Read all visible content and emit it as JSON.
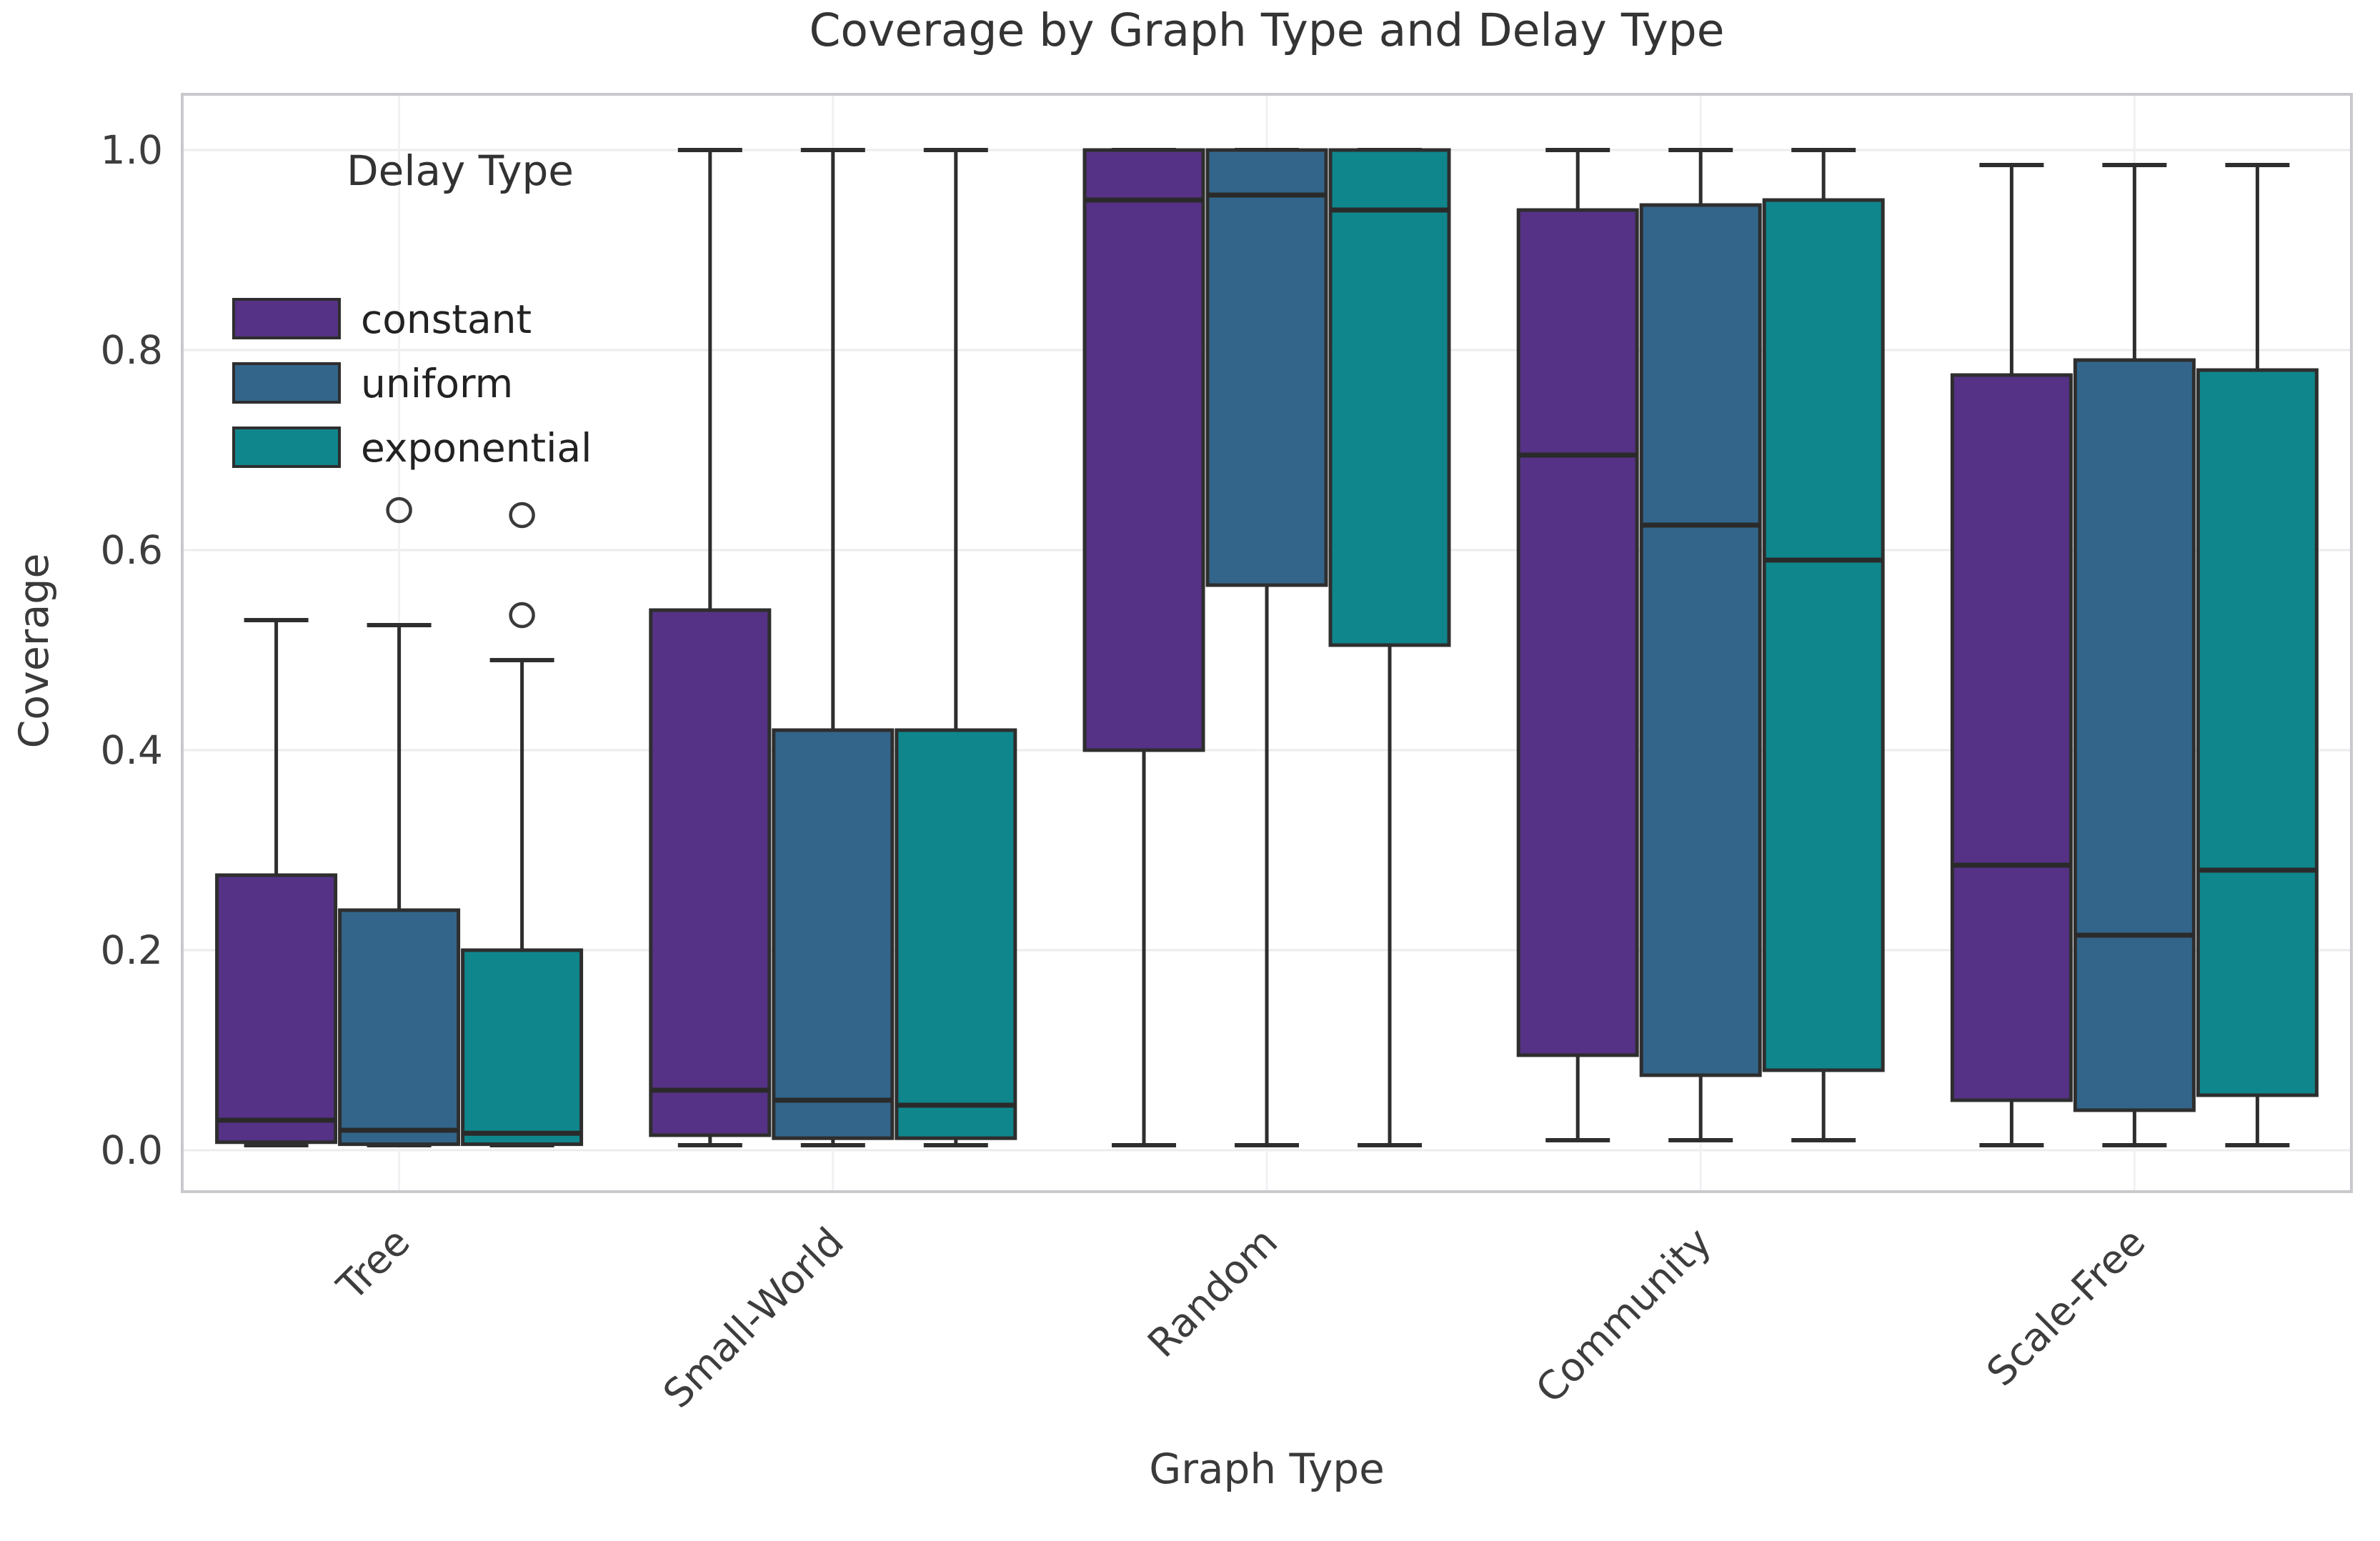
{
  "title": "Coverage by Graph Type and Delay Type",
  "x_axis": {
    "label": "Graph Type",
    "tick_labels": [
      "Tree",
      "Small-World",
      "Random",
      "Community",
      "Scale-Free"
    ],
    "tick_rotation_deg": -45
  },
  "y_axis": {
    "label": "Coverage",
    "tick_labels": [
      "0.0",
      "0.2",
      "0.4",
      "0.6",
      "0.8",
      "1.0"
    ],
    "tick_values": [
      0.0,
      0.2,
      0.4,
      0.6,
      0.8,
      1.0
    ]
  },
  "legend": {
    "title": "Delay Type",
    "items": [
      {
        "label": "constant",
        "color": "#553285"
      },
      {
        "label": "uniform",
        "color": "#33658a"
      },
      {
        "label": "exponential",
        "color": "#0f868c"
      }
    ]
  },
  "colors": {
    "box_edge": "#2e2e2e",
    "median_line": "#2a2a2a",
    "whisker": "#2e2e2e",
    "outlier_stroke": "#3a3a3a",
    "gridline_h": "#ececec",
    "gridline_v": "#f1f1f3",
    "spine": "#c9c9cd",
    "tick_text": "#3d3d3d",
    "background": "#ffffff"
  },
  "chart_data": {
    "type": "boxplot",
    "title": "Coverage by Graph Type and Delay Type",
    "xlabel": "Graph Type",
    "ylabel": "Coverage",
    "ylim": [
      -0.05,
      1.06
    ],
    "grid": true,
    "legend_position": "upper left",
    "categories": [
      "Tree",
      "Small-World",
      "Random",
      "Community",
      "Scale-Free"
    ],
    "series": [
      {
        "name": "constant",
        "color": "#553285",
        "boxes": [
          {
            "whislo": 0.005,
            "q1": 0.008,
            "med": 0.03,
            "q3": 0.275,
            "whishi": 0.53,
            "fliers": []
          },
          {
            "whislo": 0.005,
            "q1": 0.015,
            "med": 0.06,
            "q3": 0.54,
            "whishi": 1.0,
            "fliers": []
          },
          {
            "whislo": 0.005,
            "q1": 0.4,
            "med": 0.95,
            "q3": 1.0,
            "whishi": 1.0,
            "fliers": []
          },
          {
            "whislo": 0.01,
            "q1": 0.095,
            "med": 0.695,
            "q3": 0.94,
            "whishi": 1.0,
            "fliers": []
          },
          {
            "whislo": 0.005,
            "q1": 0.05,
            "med": 0.285,
            "q3": 0.775,
            "whishi": 0.985,
            "fliers": []
          }
        ]
      },
      {
        "name": "uniform",
        "color": "#33658a",
        "boxes": [
          {
            "whislo": 0.005,
            "q1": 0.006,
            "med": 0.02,
            "q3": 0.24,
            "whishi": 0.525,
            "fliers": [
              0.64
            ]
          },
          {
            "whislo": 0.005,
            "q1": 0.012,
            "med": 0.05,
            "q3": 0.42,
            "whishi": 1.0,
            "fliers": []
          },
          {
            "whislo": 0.005,
            "q1": 0.565,
            "med": 0.955,
            "q3": 1.0,
            "whishi": 1.0,
            "fliers": []
          },
          {
            "whislo": 0.01,
            "q1": 0.075,
            "med": 0.625,
            "q3": 0.945,
            "whishi": 1.0,
            "fliers": []
          },
          {
            "whislo": 0.005,
            "q1": 0.04,
            "med": 0.215,
            "q3": 0.79,
            "whishi": 0.985,
            "fliers": []
          }
        ]
      },
      {
        "name": "exponential",
        "color": "#0f868c",
        "boxes": [
          {
            "whislo": 0.005,
            "q1": 0.006,
            "med": 0.017,
            "q3": 0.2,
            "whishi": 0.49,
            "fliers": [
              0.635,
              0.535
            ]
          },
          {
            "whislo": 0.005,
            "q1": 0.012,
            "med": 0.045,
            "q3": 0.42,
            "whishi": 1.0,
            "fliers": []
          },
          {
            "whislo": 0.005,
            "q1": 0.505,
            "med": 0.94,
            "q3": 1.0,
            "whishi": 1.0,
            "fliers": []
          },
          {
            "whislo": 0.01,
            "q1": 0.08,
            "med": 0.59,
            "q3": 0.95,
            "whishi": 1.0,
            "fliers": []
          },
          {
            "whislo": 0.005,
            "q1": 0.055,
            "med": 0.28,
            "q3": 0.78,
            "whishi": 0.985,
            "fliers": []
          }
        ]
      }
    ]
  }
}
